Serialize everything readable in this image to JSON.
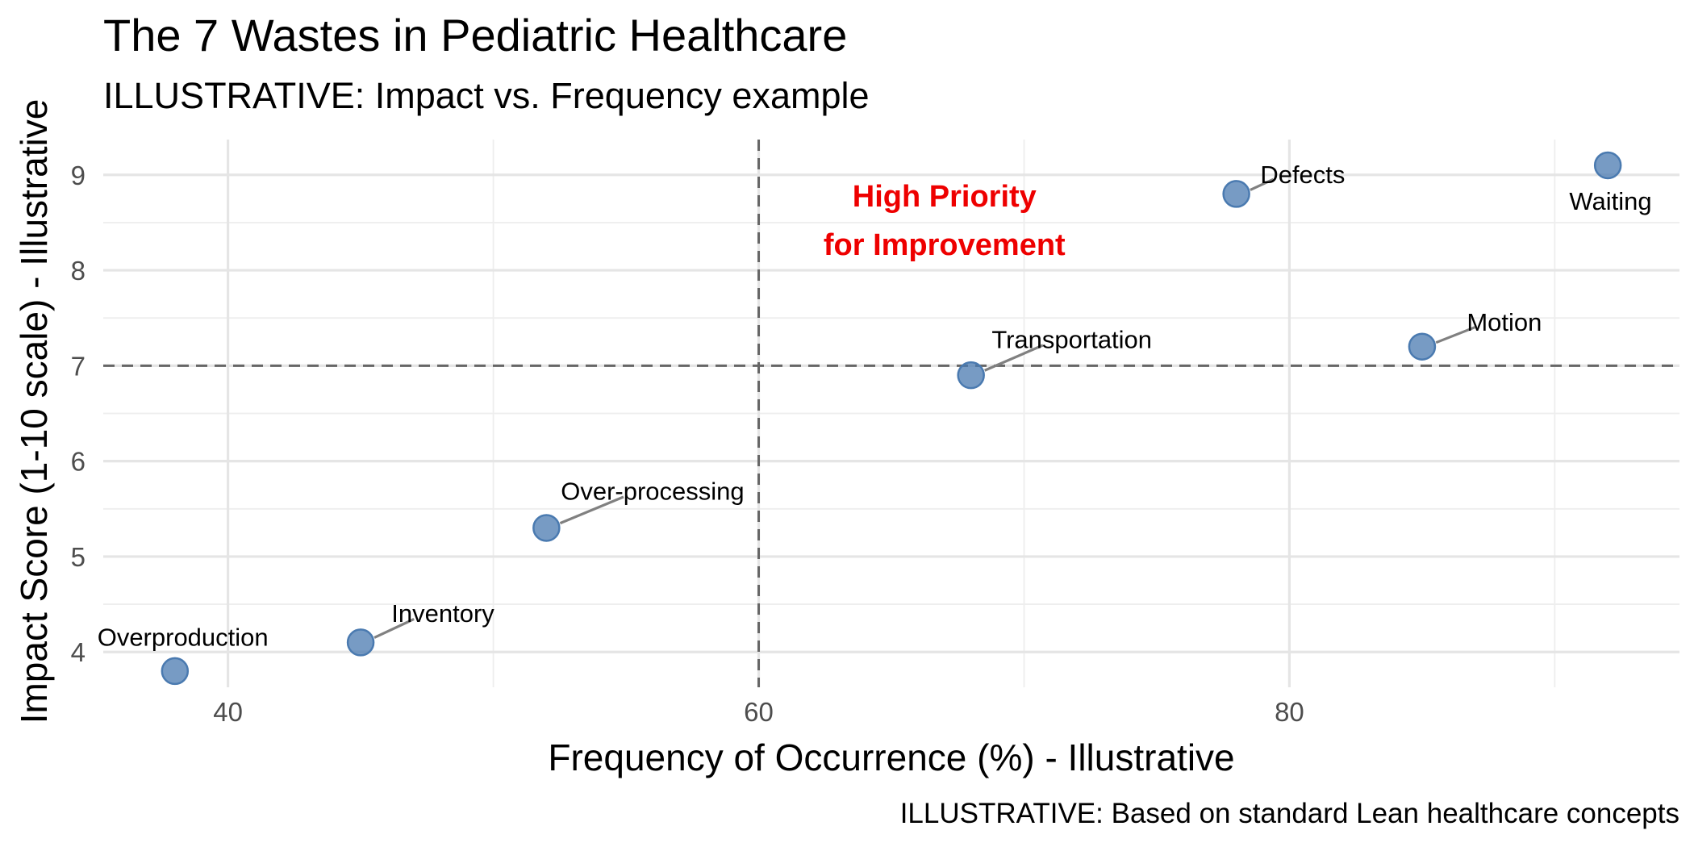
{
  "chart_data": {
    "type": "scatter",
    "title": "The 7 Wastes in Pediatric Healthcare",
    "subtitle": "ILLUSTRATIVE: Impact vs. Frequency example",
    "xlabel": "Frequency of Occurrence (%) - Illustrative",
    "ylabel": "Impact Score (1-10 scale) - Illustrative",
    "caption": "ILLUSTRATIVE: Based on standard Lean healthcare concepts",
    "xlim": [
      35.3,
      94.7
    ],
    "ylim": [
      3.63,
      9.37
    ],
    "x_ticks": [
      40,
      60,
      80
    ],
    "y_ticks": [
      4,
      5,
      6,
      7,
      8,
      9
    ],
    "grid": true,
    "reference_lines": {
      "x": 60,
      "y": 7
    },
    "annotation": {
      "lines": [
        "High Priority",
        "for Improvement"
      ],
      "x": 67,
      "y": 8.5,
      "color": "#ee0000"
    },
    "point_color": "#4a7ab0",
    "points": [
      {
        "label": "Overproduction",
        "x": 38,
        "y": 3.8,
        "label_x": 38.3,
        "label_y": 4.15
      },
      {
        "label": "Inventory",
        "x": 45,
        "y": 4.1,
        "label_x": 48.1,
        "label_y": 4.4
      },
      {
        "label": "Over-processing",
        "x": 52,
        "y": 5.3,
        "label_x": 56,
        "label_y": 5.68
      },
      {
        "label": "Transportation",
        "x": 68,
        "y": 6.9,
        "label_x": 71.8,
        "label_y": 7.27
      },
      {
        "label": "Motion",
        "x": 85,
        "y": 7.2,
        "label_x": 88.1,
        "label_y": 7.45
      },
      {
        "label": "Defects",
        "x": 78,
        "y": 8.8,
        "label_x": 80.5,
        "label_y": 9
      },
      {
        "label": "Waiting",
        "x": 92,
        "y": 9.1,
        "label_x": 92.1,
        "label_y": 8.72
      }
    ]
  }
}
